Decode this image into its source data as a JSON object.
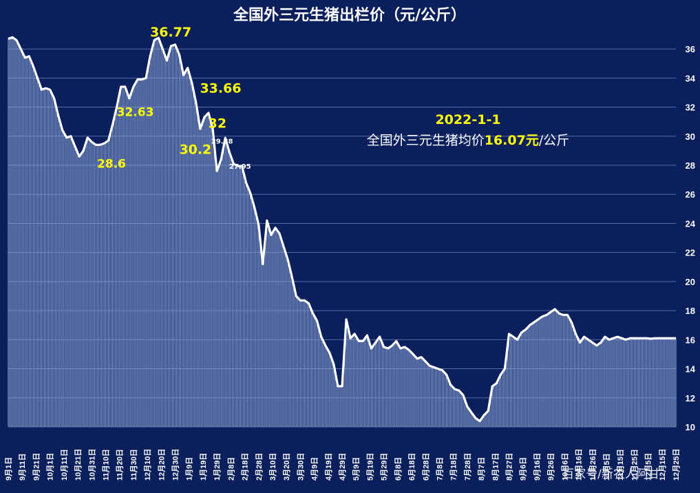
{
  "chart_data": {
    "type": "area",
    "title": "全国外三元生猪出栏价（元/公斤）",
    "xlabel": "",
    "ylabel": "",
    "ylim": [
      10,
      37
    ],
    "yticks": [
      10,
      12,
      14,
      16,
      18,
      20,
      22,
      24,
      26,
      28,
      30,
      32,
      34,
      36
    ],
    "grid": true,
    "x_tick_labels": [
      "9月1日",
      "9月11日",
      "9月21日",
      "10月1日",
      "10月11日",
      "10月21日",
      "10月31日",
      "11月10日",
      "11月20日",
      "11月30日",
      "12月10日",
      "12月20日",
      "12月30日",
      "1月9日",
      "1月19日",
      "1月29日",
      "2月8日",
      "2月18日",
      "2月28日",
      "3月10日",
      "3月20日",
      "3月30日",
      "4月9日",
      "4月19日",
      "4月29日",
      "5月9日",
      "5月19日",
      "5月29日",
      "6月8日",
      "6月18日",
      "6月28日",
      "7月8日",
      "7月18日",
      "7月28日",
      "8月7日",
      "8月17日",
      "8月27日",
      "9月6日",
      "9月16日",
      "9月26日",
      "10月6日",
      "10月16日",
      "10月26日",
      "11月5日",
      "11月15日",
      "11月25日",
      "12月5日",
      "12月15日",
      "12月25日"
    ],
    "series": [
      {
        "x_days": [
          0,
          3,
          6,
          9,
          12,
          15,
          18,
          21,
          24,
          27,
          30,
          33,
          36,
          39,
          42,
          45,
          48,
          51,
          54,
          57,
          60,
          63,
          66,
          69,
          72,
          75,
          78,
          81,
          84,
          87,
          90,
          93,
          96,
          99,
          102,
          105,
          108,
          111,
          114,
          117,
          120,
          123,
          126,
          129,
          132,
          135,
          138,
          141,
          144,
          147,
          150,
          153,
          156,
          159,
          162,
          165,
          168,
          171,
          174,
          177,
          180,
          183,
          186,
          189,
          192,
          195,
          198,
          201,
          204,
          207,
          210,
          213,
          216,
          219,
          222,
          225,
          228,
          231,
          234,
          237,
          240,
          243,
          246,
          249,
          252,
          255,
          258,
          261,
          264,
          267,
          270,
          273,
          276,
          279,
          282,
          285,
          288,
          291,
          294,
          297,
          300,
          303,
          306,
          309,
          312,
          315,
          318,
          321,
          324,
          327,
          330,
          333,
          336,
          339,
          342,
          345,
          348,
          351,
          354,
          357,
          360,
          363,
          366,
          369,
          372,
          375,
          378,
          381,
          384,
          387,
          390,
          393,
          396,
          399,
          402,
          405,
          408,
          411,
          414,
          417,
          420,
          423,
          426,
          429,
          432,
          435,
          438,
          441,
          444,
          447,
          450,
          453,
          456,
          459,
          462,
          465,
          468,
          471,
          474,
          477,
          480
        ],
        "values": [
          36.7,
          36.8,
          36.6,
          36.0,
          35.4,
          35.5,
          34.8,
          34.0,
          33.2,
          33.3,
          33.2,
          32.6,
          31.4,
          30.4,
          29.9,
          30.0,
          29.3,
          28.6,
          29.0,
          29.9,
          29.6,
          29.4,
          29.4,
          29.5,
          29.7,
          30.8,
          32.0,
          33.4,
          33.4,
          32.6,
          33.4,
          33.9,
          33.9,
          34.0,
          35.5,
          36.6,
          36.77,
          36.0,
          35.2,
          36.2,
          36.3,
          35.6,
          34.2,
          34.7,
          33.66,
          32.3,
          30.5,
          31.3,
          31.6,
          30.5,
          27.6,
          28.4,
          29.88,
          28.9,
          28.1,
          27.95,
          27.95,
          26.8,
          26.1,
          25.1,
          23.9,
          21.2,
          24.2,
          23.2,
          23.7,
          23.3,
          22.4,
          21.5,
          20.3,
          19.0,
          18.7,
          18.7,
          18.5,
          17.8,
          17.3,
          16.2,
          15.6,
          15.1,
          14.3,
          12.8,
          12.8,
          17.4,
          16.1,
          16.4,
          15.9,
          15.9,
          16.3,
          15.4,
          15.8,
          16.2,
          15.5,
          15.4,
          15.6,
          15.9,
          15.4,
          15.5,
          15.3,
          15.0,
          14.7,
          14.8,
          14.5,
          14.2,
          14.1,
          14.0,
          13.9,
          13.6,
          12.9,
          12.6,
          12.5,
          12.2,
          11.4,
          11.0,
          10.6,
          10.4,
          10.8,
          11.1,
          12.8,
          13.0,
          13.6,
          14.0,
          16.4,
          16.2,
          16.0,
          16.5,
          16.7,
          17.0,
          17.2,
          17.4,
          17.6,
          17.7,
          17.9,
          18.1,
          17.8,
          17.7,
          17.7,
          17.2,
          16.4,
          15.8,
          16.2,
          16.0,
          15.8,
          15.6,
          15.8,
          16.2,
          16.0,
          16.1,
          16.2,
          16.1,
          16.0,
          16.1,
          16.1,
          16.1,
          16.1,
          16.1,
          16.07,
          16.1,
          16.1,
          16.1,
          16.1,
          16.1,
          16.1
        ]
      }
    ],
    "peak_labels": [
      {
        "text": "36.77",
        "value": 36.77,
        "day": 96,
        "size": "large"
      },
      {
        "text": "32.63",
        "value": 32.63,
        "day": 78,
        "size": "medium"
      },
      {
        "text": "33.66",
        "value": 33.66,
        "day": 117,
        "size": "large"
      },
      {
        "text": "32",
        "value": 32,
        "day": 126,
        "size": "large"
      },
      {
        "text": "30.2",
        "value": 30.2,
        "day": 117,
        "size": "large"
      },
      {
        "text": "28.6",
        "value": 28.6,
        "day": 45,
        "size": "medium"
      },
      {
        "text": "29.88",
        "value": 29.88,
        "day": 135,
        "size": "small"
      },
      {
        "text": "27.95",
        "value": 27.95,
        "day": 144,
        "size": "small"
      }
    ],
    "annotation": {
      "date": "2022-1-1",
      "prefix": "全国外三元生猪均价",
      "value": "16.07",
      "unit_yellow": "元",
      "suffix": "/公斤"
    }
  },
  "watermark": "百家号/新农人阿甘",
  "colors": {
    "background": "#0a1f5c",
    "fill": "#8fa6d6",
    "line": "#ffffff",
    "highlight": "#ffff00"
  }
}
